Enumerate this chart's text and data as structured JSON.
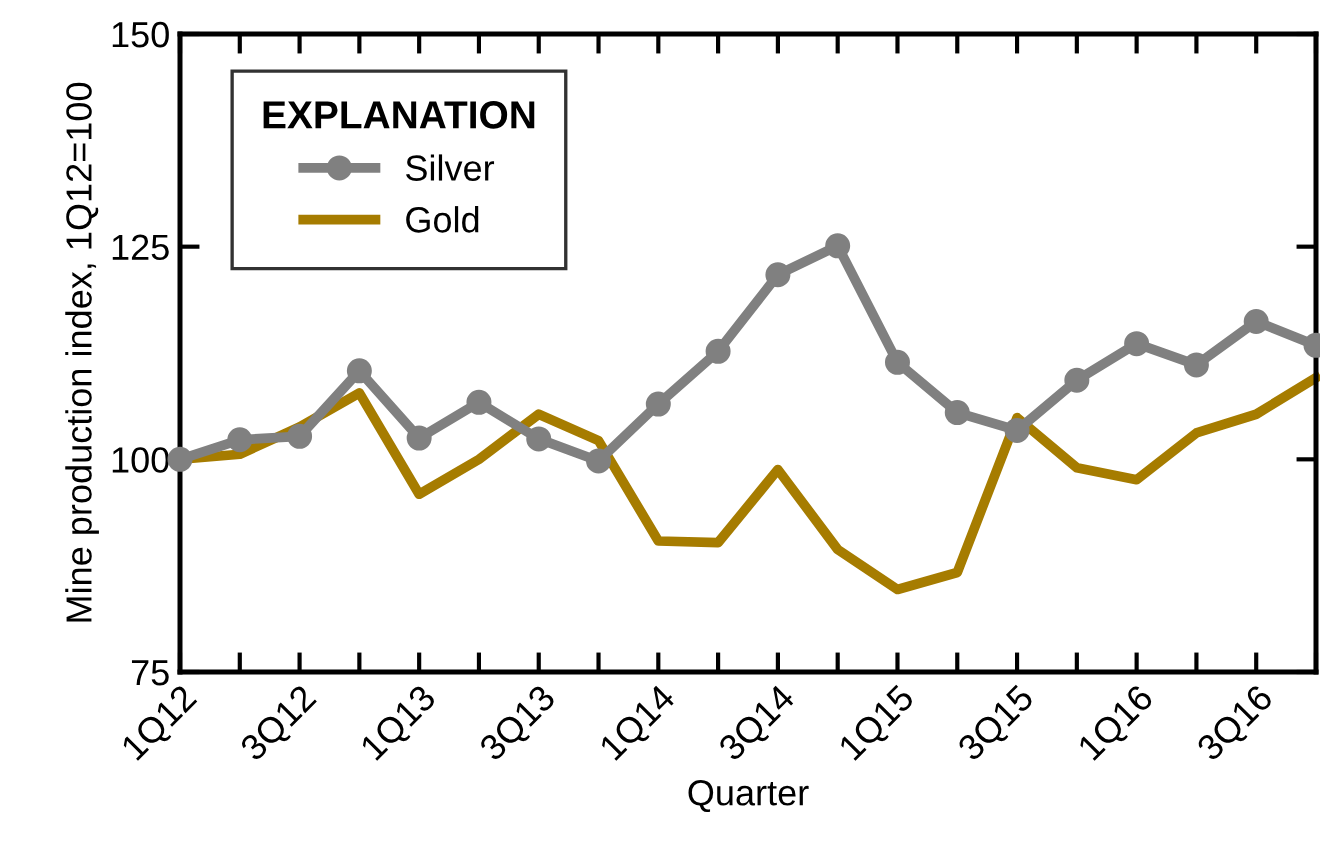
{
  "chart_data": {
    "type": "line",
    "xlabel": "Quarter",
    "ylabel": "Mine production index, 1Q12=100",
    "legend_title": "EXPLANATION",
    "categories": [
      "1Q12",
      null,
      "3Q12",
      null,
      "1Q13",
      null,
      "3Q13",
      null,
      "1Q14",
      null,
      "3Q14",
      null,
      "1Q15",
      null,
      "3Q15",
      null,
      "1Q16",
      null,
      "3Q16",
      null
    ],
    "series": [
      {
        "name": "Silver",
        "color": "#808080",
        "marker": "circle",
        "values": [
          100,
          102.3,
          102.7,
          110.4,
          102.5,
          106.7,
          102.4,
          99.8,
          106.5,
          112.7,
          121.7,
          125.1,
          111.4,
          105.5,
          103.4,
          109.3,
          113.6,
          111.1,
          116.2,
          113.4
        ]
      },
      {
        "name": "Gold",
        "color": "#a67c00",
        "marker": "none",
        "values": [
          100,
          100.6,
          103.8,
          107.8,
          95.9,
          100,
          105.3,
          102.2,
          90.4,
          90.2,
          98.8,
          89.4,
          84.7,
          86.7,
          104.9,
          99.0,
          97.6,
          103.1,
          105.3,
          109.6
        ]
      }
    ],
    "ylim": [
      75,
      150
    ],
    "yticks": [
      75,
      100,
      125,
      150
    ],
    "grid": false,
    "legend": "top left",
    "line_style": "solid"
  }
}
